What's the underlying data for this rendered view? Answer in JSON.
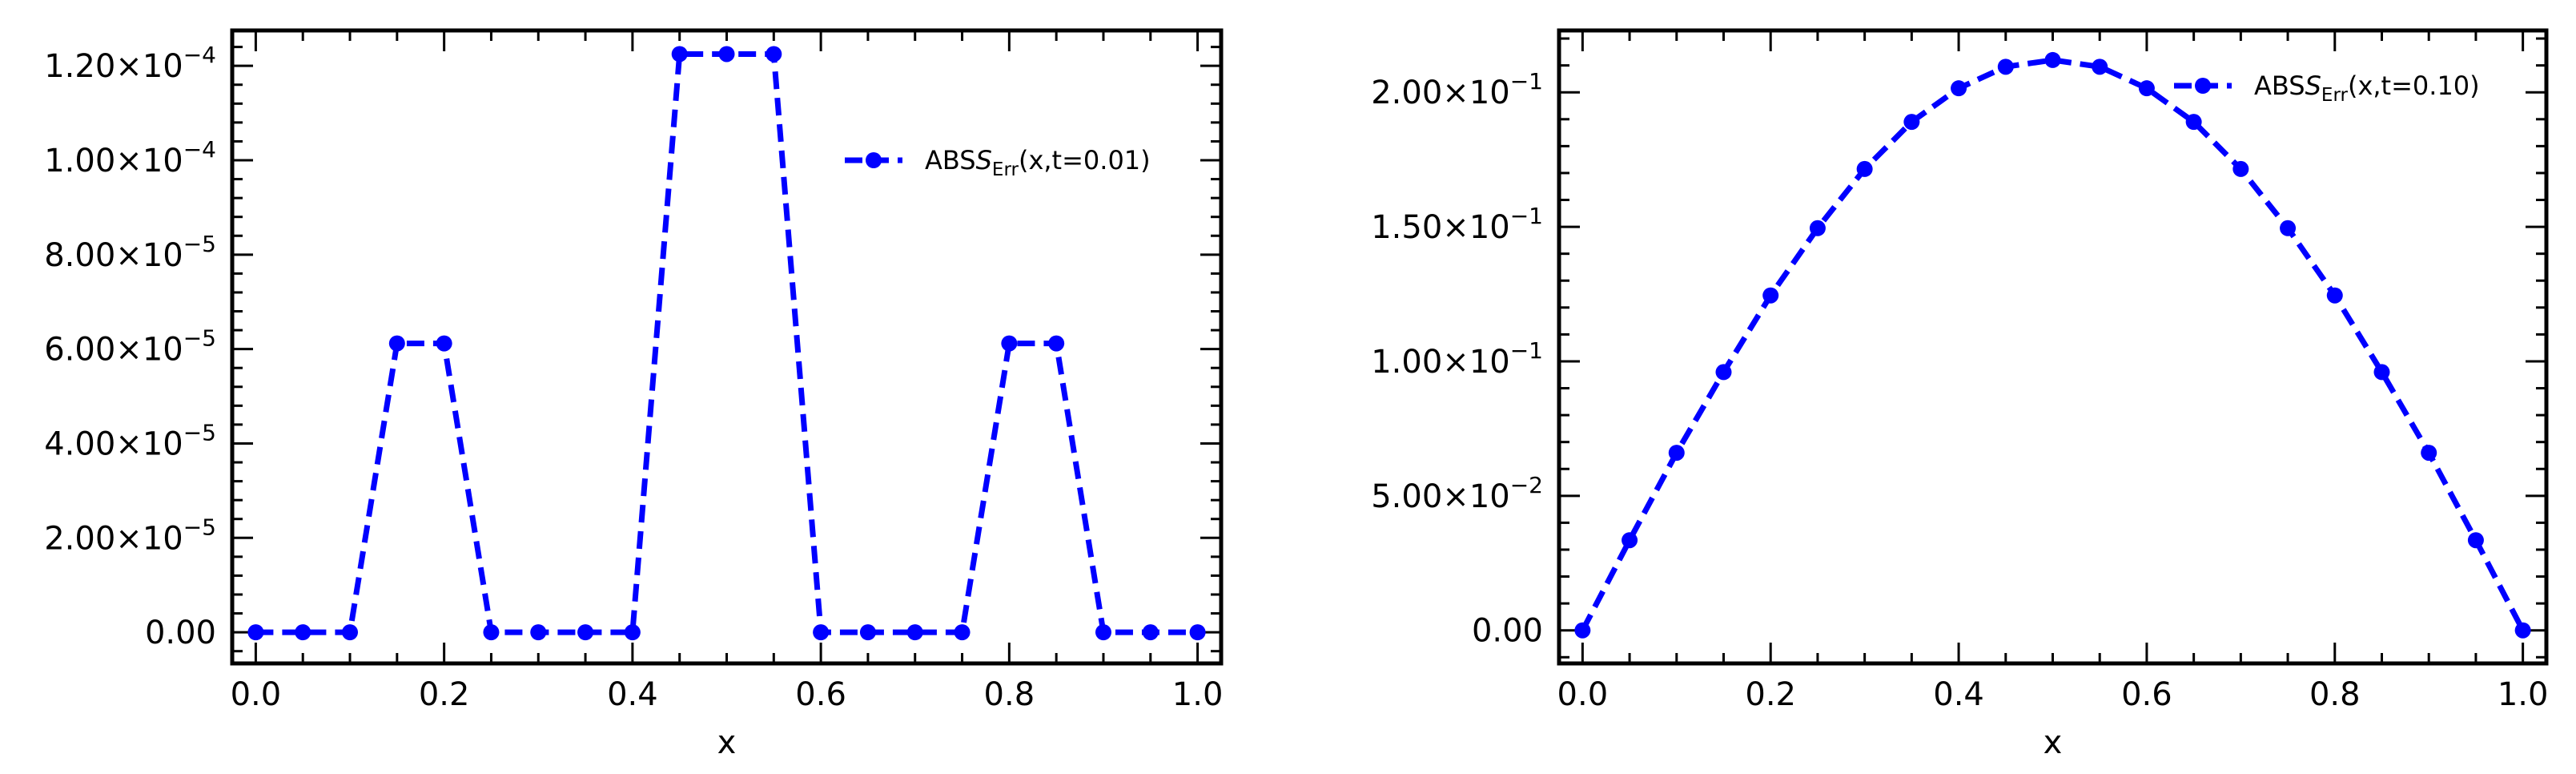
{
  "chart_data": [
    {
      "type": "line",
      "title": "",
      "xlabel": "x",
      "ylabel": "",
      "xlim": [
        -0.025,
        1.025
      ],
      "ylim": [
        -6.6e-06,
        0.0001275
      ],
      "x_ticks": [
        0.0,
        0.2,
        0.4,
        0.6,
        0.8,
        1.0
      ],
      "x_tick_labels": [
        "0.0",
        "0.2",
        "0.4",
        "0.6",
        "0.8",
        "1.0"
      ],
      "y_ticks": [
        0.0,
        2e-05,
        4e-05,
        6e-05,
        8e-05,
        0.0001,
        0.00012
      ],
      "y_tick_labels": [
        {
          "mantissa": "0.00",
          "exponent": ""
        },
        {
          "mantissa": "2.00×10",
          "exponent": "−5"
        },
        {
          "mantissa": "4.00×10",
          "exponent": "−5"
        },
        {
          "mantissa": "6.00×10",
          "exponent": "−5"
        },
        {
          "mantissa": "8.00×10",
          "exponent": "−5"
        },
        {
          "mantissa": "1.00×10",
          "exponent": "−4"
        },
        {
          "mantissa": "1.20×10",
          "exponent": "−4"
        }
      ],
      "grid": false,
      "legend_position": "upper-right",
      "series": [
        {
          "name": "ABS",
          "name_italic": "S",
          "name_sub": "Err",
          "name_suffix": "(x,t=0.01)",
          "color": "#0000ff",
          "line_style": "dashed",
          "marker": "circle",
          "x": [
            0.0,
            0.05,
            0.1,
            0.15,
            0.2,
            0.25,
            0.3,
            0.35,
            0.4,
            0.45,
            0.5,
            0.55,
            0.6,
            0.65,
            0.7,
            0.75,
            0.8,
            0.85,
            0.9,
            0.95,
            1.0
          ],
          "y": [
            0.0,
            0.0,
            0.0,
            6.12e-05,
            6.12e-05,
            0.0,
            0.0,
            0.0,
            0.0,
            0.0001225,
            0.0001225,
            0.0001225,
            0.0,
            0.0,
            0.0,
            0.0,
            6.12e-05,
            6.12e-05,
            0.0,
            0.0,
            0.0
          ]
        }
      ]
    },
    {
      "type": "line",
      "title": "",
      "xlabel": "x",
      "ylabel": "",
      "xlim": [
        -0.025,
        1.025
      ],
      "ylim": [
        -0.0123,
        0.223
      ],
      "x_ticks": [
        0.0,
        0.2,
        0.4,
        0.6,
        0.8,
        1.0
      ],
      "x_tick_labels": [
        "0.0",
        "0.2",
        "0.4",
        "0.6",
        "0.8",
        "1.0"
      ],
      "y_ticks": [
        0.0,
        0.05,
        0.1,
        0.15,
        0.2
      ],
      "y_tick_labels": [
        {
          "mantissa": "0.00",
          "exponent": ""
        },
        {
          "mantissa": "5.00×10",
          "exponent": "−2"
        },
        {
          "mantissa": "1.00×10",
          "exponent": "−1"
        },
        {
          "mantissa": "1.50×10",
          "exponent": "−1"
        },
        {
          "mantissa": "2.00×10",
          "exponent": "−1"
        }
      ],
      "grid": false,
      "legend_position": "upper-right",
      "series": [
        {
          "name": "ABS",
          "name_italic": "S",
          "name_sub": "Err",
          "name_suffix": "(x,t=0.10)",
          "color": "#0000ff",
          "line_style": "dashed",
          "marker": "circle",
          "x": [
            0.0,
            0.05,
            0.1,
            0.15,
            0.2,
            0.25,
            0.3,
            0.35,
            0.4,
            0.45,
            0.5,
            0.55,
            0.6,
            0.65,
            0.7,
            0.75,
            0.8,
            0.85,
            0.9,
            0.95,
            1.0
          ],
          "y": [
            0.0,
            0.0335,
            0.066,
            0.096,
            0.1245,
            0.1495,
            0.1715,
            0.189,
            0.2015,
            0.2095,
            0.212,
            0.2095,
            0.2015,
            0.189,
            0.1715,
            0.1495,
            0.1245,
            0.096,
            0.066,
            0.0335,
            0.0
          ]
        }
      ]
    }
  ]
}
